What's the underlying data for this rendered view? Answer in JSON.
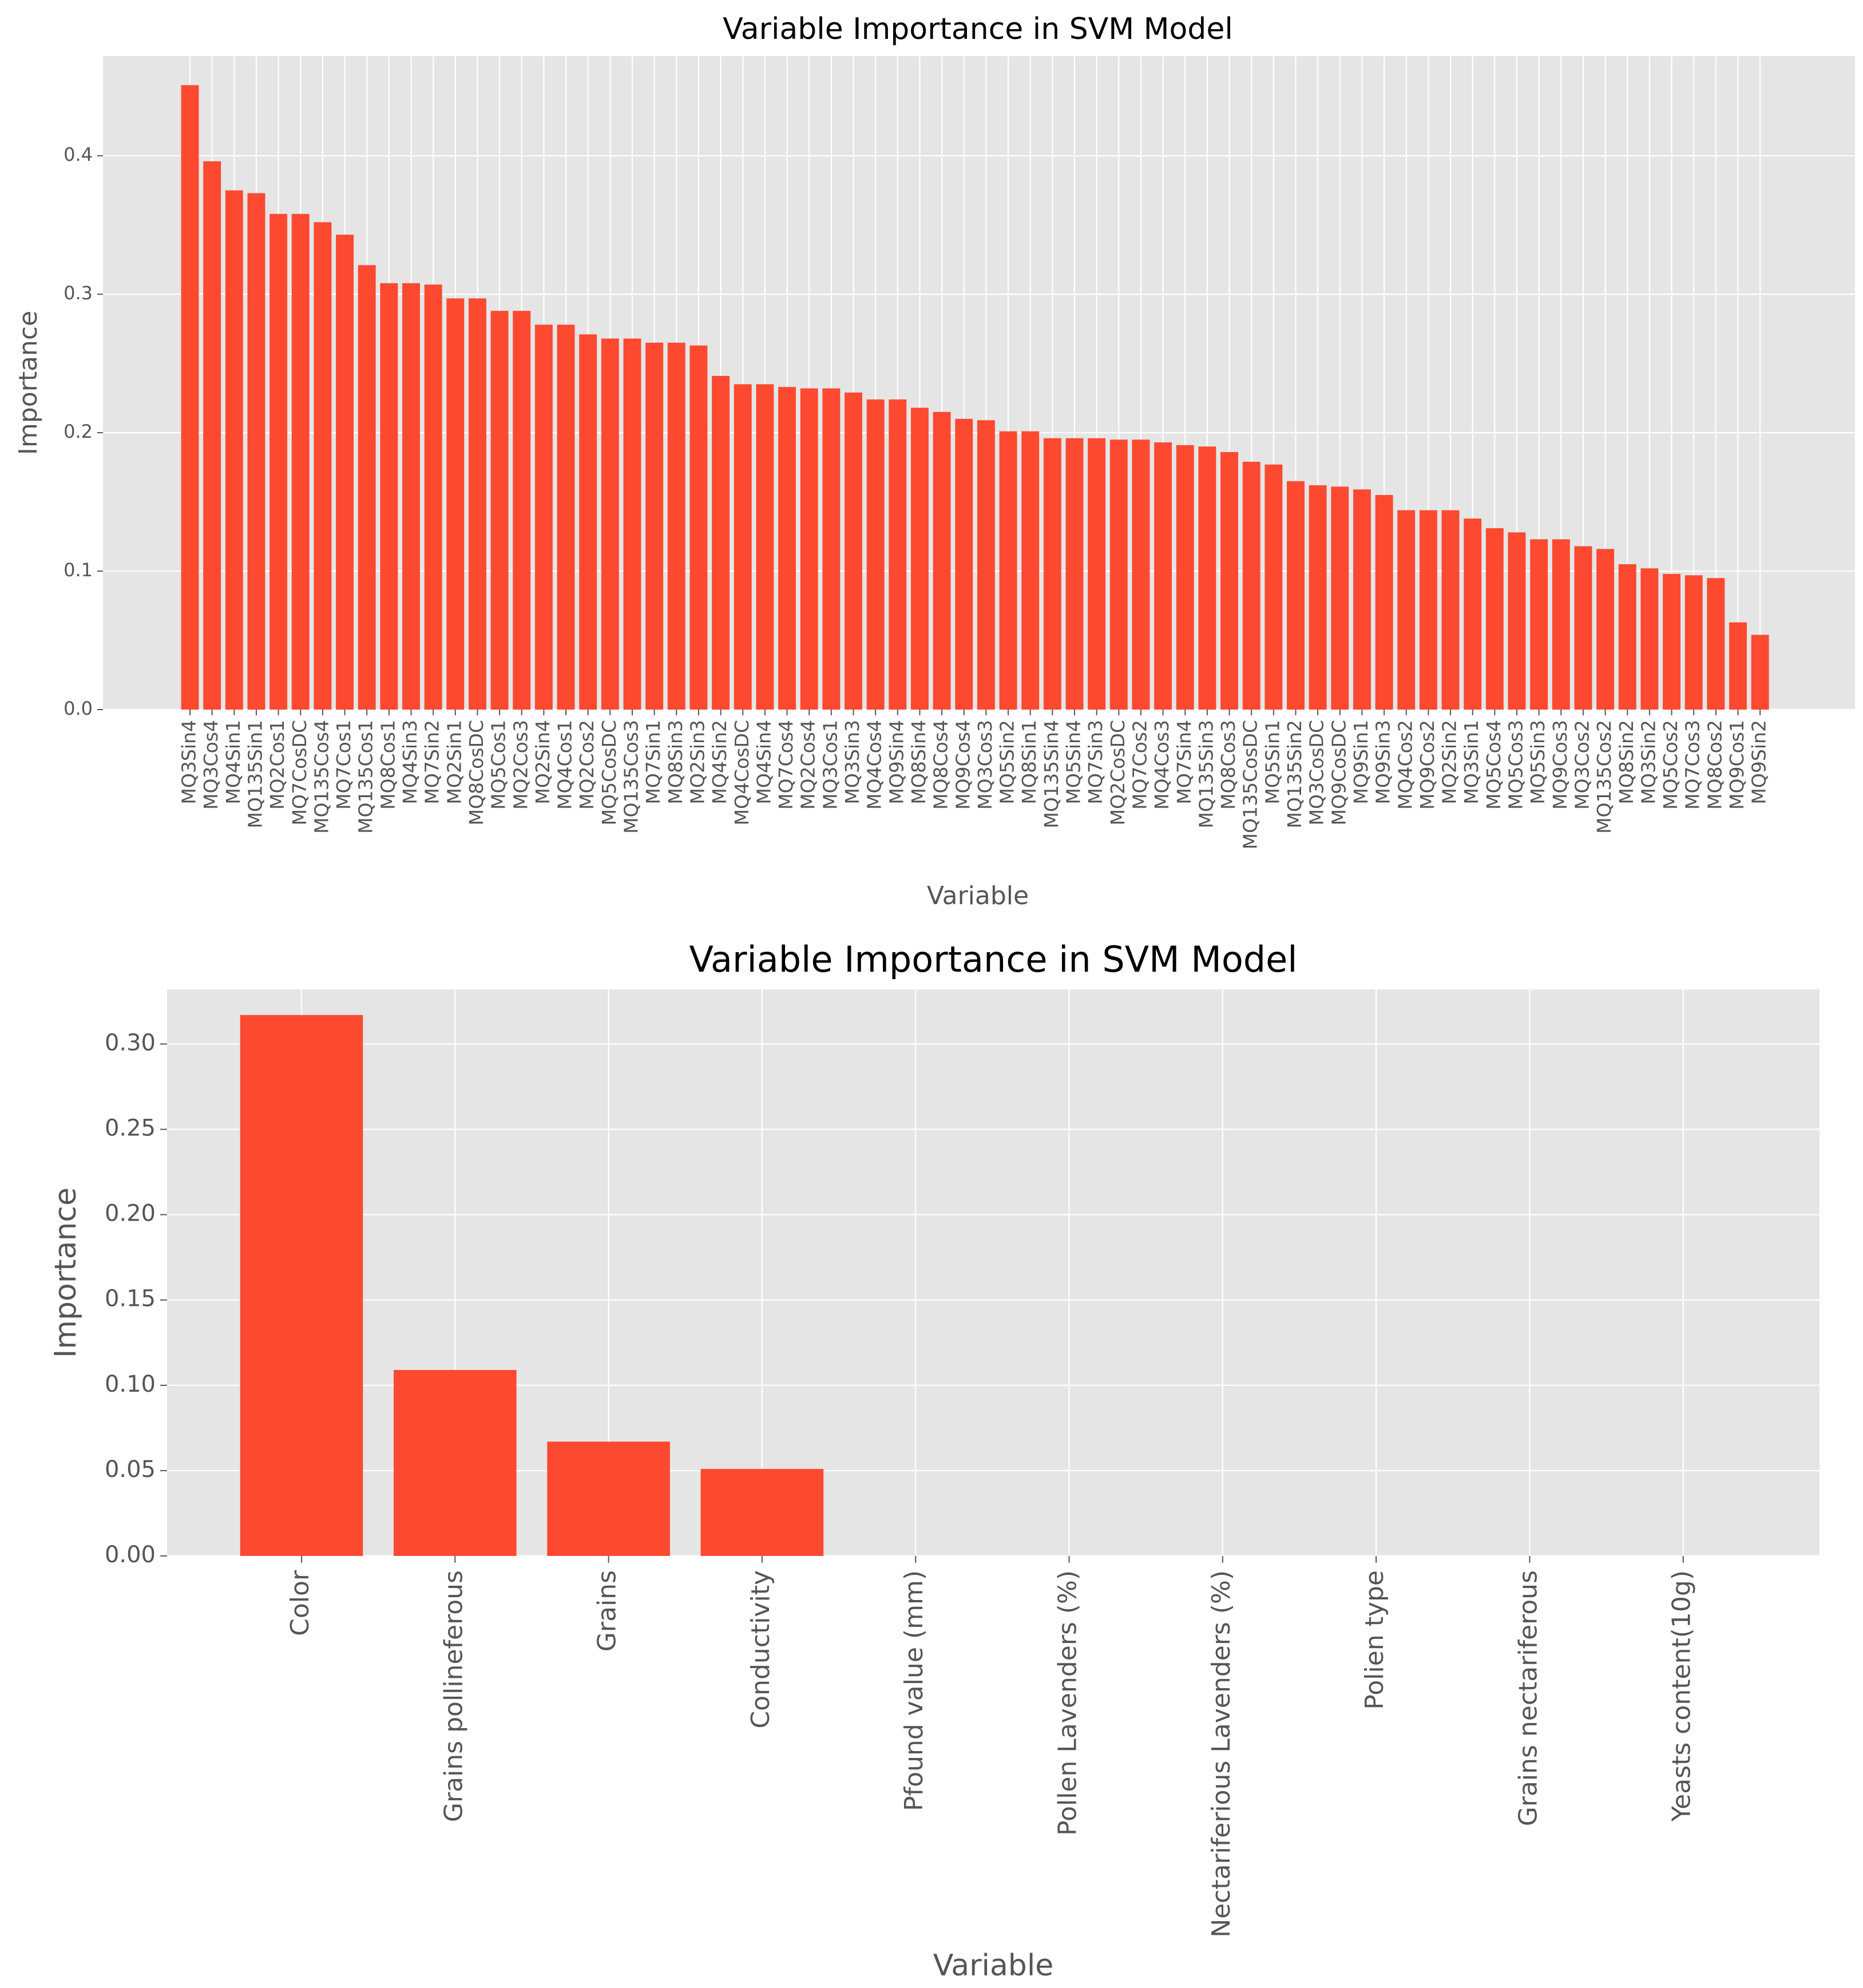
{
  "colors": {
    "bar": "#fc4930",
    "background": "#e5e5e5",
    "grid": "#ffffff",
    "text": "#555555",
    "title": "#000000"
  },
  "chart_data": [
    {
      "type": "bar",
      "title": "Variable Importance in SVM Model",
      "xlabel": "Variable",
      "ylabel": "Importance",
      "ylim": [
        0,
        0.472
      ],
      "yticks": [
        "0.0",
        "0.1",
        "0.2",
        "0.3",
        "0.4"
      ],
      "grid": true,
      "categories": [
        "MQ3Sin4",
        "MQ3Cos4",
        "MQ4Sin1",
        "MQ135Sin1",
        "MQ2Cos1",
        "MQ7CosDC",
        "MQ135Cos4",
        "MQ7Cos1",
        "MQ135Cos1",
        "MQ8Cos1",
        "MQ4Sin3",
        "MQ7Sin2",
        "MQ2Sin1",
        "MQ8CosDC",
        "MQ5Cos1",
        "MQ2Cos3",
        "MQ2Sin4",
        "MQ4Cos1",
        "MQ2Cos2",
        "MQ5CosDC",
        "MQ135Cos3",
        "MQ7Sin1",
        "MQ8Sin3",
        "MQ2Sin3",
        "MQ4Sin2",
        "MQ4CosDC",
        "MQ4Sin4",
        "MQ7Cos4",
        "MQ2Cos4",
        "MQ3Cos1",
        "MQ3Sin3",
        "MQ4Cos4",
        "MQ9Sin4",
        "MQ8Sin4",
        "MQ8Cos4",
        "MQ9Cos4",
        "MQ3Cos3",
        "MQ5Sin2",
        "MQ8Sin1",
        "MQ135Sin4",
        "MQ5Sin4",
        "MQ7Sin3",
        "MQ2CosDC",
        "MQ7Cos2",
        "MQ4Cos3",
        "MQ7Sin4",
        "MQ135Sin3",
        "MQ8Cos3",
        "MQ135CosDC",
        "MQ5Sin1",
        "MQ135Sin2",
        "MQ3CosDC",
        "MQ9CosDC",
        "MQ9Sin1",
        "MQ9Sin3",
        "MQ4Cos2",
        "MQ9Cos2",
        "MQ2Sin2",
        "MQ3Sin1",
        "MQ5Cos4",
        "MQ5Cos3",
        "MQ5Sin3",
        "MQ9Cos3",
        "MQ3Cos2",
        "MQ135Cos2",
        "MQ8Sin2",
        "MQ3Sin2",
        "MQ5Cos2",
        "MQ7Cos3",
        "MQ8Cos2",
        "MQ9Cos1",
        "MQ9Sin2"
      ],
      "values": [
        0.451,
        0.396,
        0.375,
        0.373,
        0.358,
        0.358,
        0.352,
        0.343,
        0.321,
        0.308,
        0.308,
        0.307,
        0.297,
        0.297,
        0.288,
        0.288,
        0.278,
        0.278,
        0.271,
        0.268,
        0.268,
        0.265,
        0.265,
        0.263,
        0.241,
        0.235,
        0.235,
        0.233,
        0.232,
        0.232,
        0.229,
        0.224,
        0.224,
        0.218,
        0.215,
        0.21,
        0.209,
        0.201,
        0.201,
        0.196,
        0.196,
        0.196,
        0.195,
        0.195,
        0.193,
        0.191,
        0.19,
        0.186,
        0.179,
        0.177,
        0.165,
        0.162,
        0.161,
        0.159,
        0.155,
        0.144,
        0.144,
        0.144,
        0.138,
        0.131,
        0.128,
        0.123,
        0.123,
        0.118,
        0.116,
        0.105,
        0.102,
        0.098,
        0.097,
        0.095,
        0.063,
        0.054
      ]
    },
    {
      "type": "bar",
      "title": "Variable Importance in SVM Model",
      "xlabel": "Variable",
      "ylabel": "Importance",
      "ylim": [
        0,
        0.332
      ],
      "yticks": [
        "0.00",
        "0.05",
        "0.10",
        "0.15",
        "0.20",
        "0.25",
        "0.30"
      ],
      "grid": true,
      "categories": [
        "Color",
        "Grains pollineferous",
        "Grains",
        "Conductivity",
        "Pfound value (mm)",
        "Pollen Lavenders (%)",
        "Nectariferious Lavenders (%)",
        "Polien type",
        "Grains nectariferous",
        "Yeasts content(10g)"
      ],
      "values": [
        0.317,
        0.109,
        0.067,
        0.051,
        0,
        0,
        0,
        0,
        0,
        0
      ]
    }
  ]
}
